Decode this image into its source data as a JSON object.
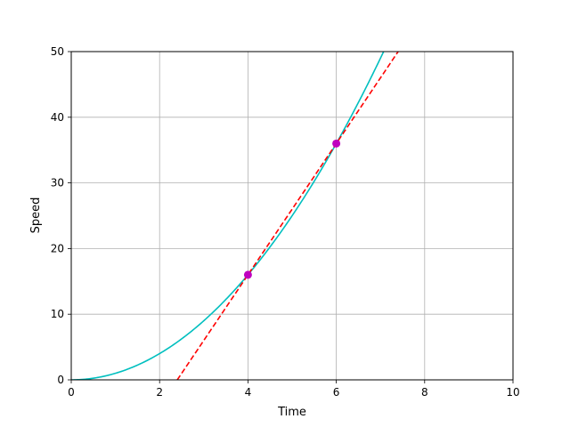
{
  "chart_data": {
    "type": "line",
    "title": "",
    "xlabel": "Time",
    "ylabel": "Speed",
    "xlim": [
      0,
      10
    ],
    "ylim": [
      0,
      50
    ],
    "xticks": [
      0,
      2,
      4,
      6,
      8,
      10
    ],
    "yticks": [
      0,
      10,
      20,
      30,
      40,
      50
    ],
    "grid": true,
    "series": [
      {
        "style": "solid",
        "color": "#00bfbf",
        "function": "y = x^2",
        "x": [
          0,
          0.5,
          1,
          1.5,
          2,
          2.5,
          3,
          3.5,
          4,
          4.5,
          5,
          5.5,
          6,
          6.5,
          7,
          7.07
        ],
        "y": [
          0,
          0.25,
          1,
          2.25,
          4,
          6.25,
          9,
          12.25,
          16,
          20.25,
          25,
          30.25,
          36,
          42.25,
          49,
          50
        ]
      },
      {
        "style": "dashed",
        "color": "#ff0000",
        "function": "secant through (4,16) and (6,36)",
        "x": [
          2.4,
          7.4
        ],
        "y": [
          0,
          50
        ]
      }
    ],
    "points": {
      "color": "#bf00bf",
      "x": [
        4,
        6
      ],
      "y": [
        16,
        36
      ]
    }
  }
}
